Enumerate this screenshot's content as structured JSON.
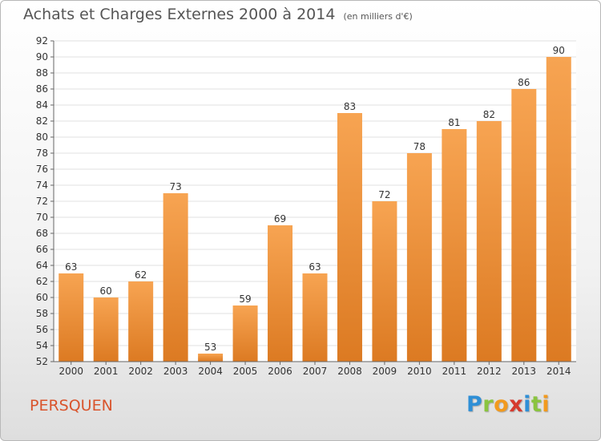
{
  "header": {
    "title": "Achats et Charges Externes 2000 à 2014",
    "unit": "(en milliers d'€)"
  },
  "footer": {
    "commune": "PERSQUEN",
    "logo_letters": [
      {
        "char": "P",
        "color": "#2f8fd6"
      },
      {
        "char": "r",
        "color": "#8ac43f"
      },
      {
        "char": "o",
        "color": "#f29a1e"
      },
      {
        "char": "x",
        "color": "#d63a2e"
      },
      {
        "char": "i",
        "color": "#2f8fd6"
      },
      {
        "char": "t",
        "color": "#8ac43f"
      },
      {
        "char": "i",
        "color": "#f29a1e"
      }
    ]
  },
  "colors": {
    "bar_light": "#f7a452",
    "bar_dark": "#dc7a22",
    "grid": "#e0e0e0",
    "axis": "#666666",
    "text": "#333333"
  },
  "chart_data": {
    "type": "bar",
    "categories": [
      "2000",
      "2001",
      "2002",
      "2003",
      "2004",
      "2005",
      "2006",
      "2007",
      "2008",
      "2009",
      "2010",
      "2011",
      "2012",
      "2013",
      "2014"
    ],
    "values": [
      63,
      60,
      62,
      73,
      53,
      59,
      69,
      63,
      83,
      72,
      78,
      81,
      82,
      86,
      90
    ],
    "ylim": [
      52,
      92
    ],
    "yticks": [
      52,
      54,
      56,
      58,
      60,
      62,
      64,
      66,
      68,
      70,
      72,
      74,
      76,
      78,
      80,
      82,
      84,
      86,
      88,
      90,
      92
    ],
    "grid": true
  }
}
